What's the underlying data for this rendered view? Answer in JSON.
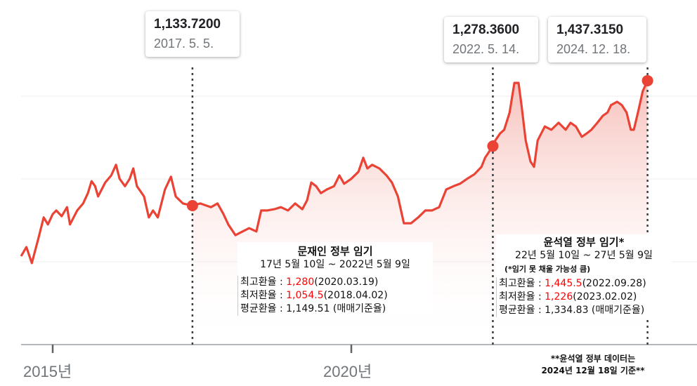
{
  "chart_data": {
    "type": "line",
    "title": "",
    "xlabel": "",
    "ylabel": "",
    "x_tick_labels": [
      "2015년",
      "2020년"
    ],
    "x_ticks": [
      2015,
      2020
    ],
    "xlim": [
      2014.47,
      2025.1
    ],
    "ylim": [
      798,
      1582
    ],
    "grid": true,
    "line_color": "#ea4335",
    "fill_color": "#fbe3e1",
    "series": [
      {
        "x": [
          2014.47,
          2014.56,
          2014.65,
          2014.76,
          2014.85,
          2014.92,
          2015.0,
          2015.06,
          2015.15,
          2015.24,
          2015.29,
          2015.41,
          2015.51,
          2015.59,
          2015.65,
          2015.71,
          2015.76,
          2015.88,
          2015.98,
          2016.06,
          2016.12,
          2016.21,
          2016.29,
          2016.35,
          2016.41,
          2016.53,
          2016.61,
          2016.68,
          2016.76,
          2016.88,
          2016.98,
          2017.06,
          2017.18,
          2017.34,
          2017.47,
          2017.65,
          2017.76,
          2017.86,
          2017.94,
          2018.06,
          2018.18,
          2018.29,
          2018.41,
          2018.49,
          2018.59,
          2018.71,
          2018.82,
          2018.94,
          2019.06,
          2019.18,
          2019.26,
          2019.33,
          2019.41,
          2019.49,
          2019.59,
          2019.71,
          2019.8,
          2019.88,
          2020.0,
          2020.12,
          2020.2,
          2020.27,
          2020.35,
          2020.47,
          2020.59,
          2020.68,
          2020.78,
          2020.88,
          2021.0,
          2021.12,
          2021.24,
          2021.35,
          2021.47,
          2021.59,
          2021.71,
          2021.82,
          2021.94,
          2022.06,
          2022.18,
          2022.24,
          2022.37,
          2022.41,
          2022.49,
          2022.56,
          2022.65,
          2022.73,
          2022.8,
          2022.85,
          2022.92,
          2023.0,
          2023.06,
          2023.12,
          2023.18,
          2023.24,
          2023.35,
          2023.47,
          2023.59,
          2023.67,
          2023.76,
          2023.86,
          2023.94,
          2024.02,
          2024.12,
          2024.21,
          2024.29,
          2024.35,
          2024.45,
          2024.53,
          2024.61,
          2024.68,
          2024.73,
          2024.8,
          2024.88,
          2024.96
        ],
        "y": [
          1011,
          1033,
          994,
          1054,
          1105,
          1088,
          1113,
          1122,
          1108,
          1130,
          1088,
          1122,
          1139,
          1164,
          1193,
          1181,
          1156,
          1190,
          1207,
          1233,
          1199,
          1181,
          1199,
          1224,
          1181,
          1156,
          1105,
          1122,
          1105,
          1173,
          1204,
          1156,
          1139,
          1133.72,
          1139,
          1130,
          1139,
          1113,
          1088,
          1062,
          1071,
          1079,
          1071,
          1122,
          1122,
          1125,
          1130,
          1122,
          1139,
          1125,
          1147,
          1190,
          1181,
          1164,
          1173,
          1181,
          1207,
          1187,
          1199,
          1216,
          1250,
          1224,
          1233,
          1224,
          1207,
          1190,
          1156,
          1091,
          1091,
          1105,
          1122,
          1122,
          1130,
          1173,
          1181,
          1187,
          1199,
          1210,
          1228,
          1250,
          1278.36,
          1292,
          1309,
          1318,
          1360,
          1432,
          1432,
          1378,
          1292,
          1241,
          1228,
          1292,
          1309,
          1326,
          1318,
          1335,
          1318,
          1335,
          1326,
          1301,
          1309,
          1318,
          1335,
          1352,
          1360,
          1378,
          1386,
          1378,
          1360,
          1318,
          1318,
          1360,
          1412,
          1437.315
        ]
      }
    ],
    "highlights": [
      {
        "value": "1,133.7200",
        "date": "2017. 5. 5.",
        "x": 2017.34,
        "y": 1133.72
      },
      {
        "value": "1,278.3600",
        "date": "2022. 5. 14.",
        "x": 2022.37,
        "y": 1278.36
      },
      {
        "value": "1,437.3150",
        "date": "2024. 12. 18.",
        "x": 2024.96,
        "y": 1437.315
      }
    ]
  },
  "moon": {
    "title": "문재인 정부 임기",
    "period": "17년 5월 10일 ~ 2022년 5월 9일",
    "max_label": "최고환율 : ",
    "max_value": "1,280",
    "max_date": "(2020.03.19)",
    "min_label": "최저환율 : ",
    "min_value": "1,054.5",
    "min_date": "(2018.04.02)",
    "avg": "평균환율 : 1,149.51 (매매기준율)"
  },
  "yoon": {
    "title": "윤석열 정부 임기*",
    "period": "22년 5월 10일 ~ 27년 5월 9일",
    "note": "(*임기 못 채울 가능성 큼)",
    "max_label": "최고환율 : ",
    "max_value": "1,445.5",
    "max_date": "(2022.09.28)",
    "min_label": "최저환율 : ",
    "min_value": "1,226",
    "min_date": "(2023.02.02)",
    "avg": "평균환율 : 1,334.83 (매매기준율)"
  },
  "footnote": {
    "line1": "**윤석열 정부 데이터는",
    "line2": "2024년 12월 18일 기준**"
  }
}
